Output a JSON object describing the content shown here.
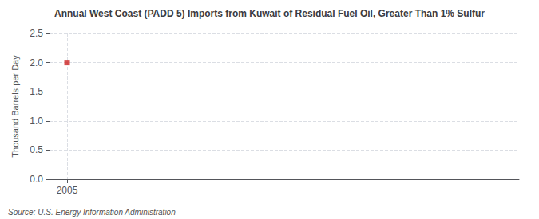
{
  "chart_data": {
    "type": "scatter",
    "title": "Annual West Coast (PADD 5) Imports from Kuwait of Residual Fuel Oil, Greater Than 1% Sulfur",
    "y_label": "Thousand Barrels per Day",
    "annotations": [
      "Source: U.S. Energy Information Administration"
    ],
    "x": [
      2005
    ],
    "values": [
      2.0
    ],
    "color": "#cc2222",
    "marker": "square",
    "xlim": [
      2004.3,
      2023
    ],
    "xticks": [
      2005
    ],
    "ylim": [
      0.0,
      2.5
    ],
    "yticks": [
      {
        "value": 0.0,
        "label": "0.0"
      },
      0.5,
      {
        "value": 1.0,
        "label": "1.0"
      },
      1.5,
      {
        "value": 2.0,
        "label": "2.0"
      },
      2.5
    ],
    "grid": true
  }
}
